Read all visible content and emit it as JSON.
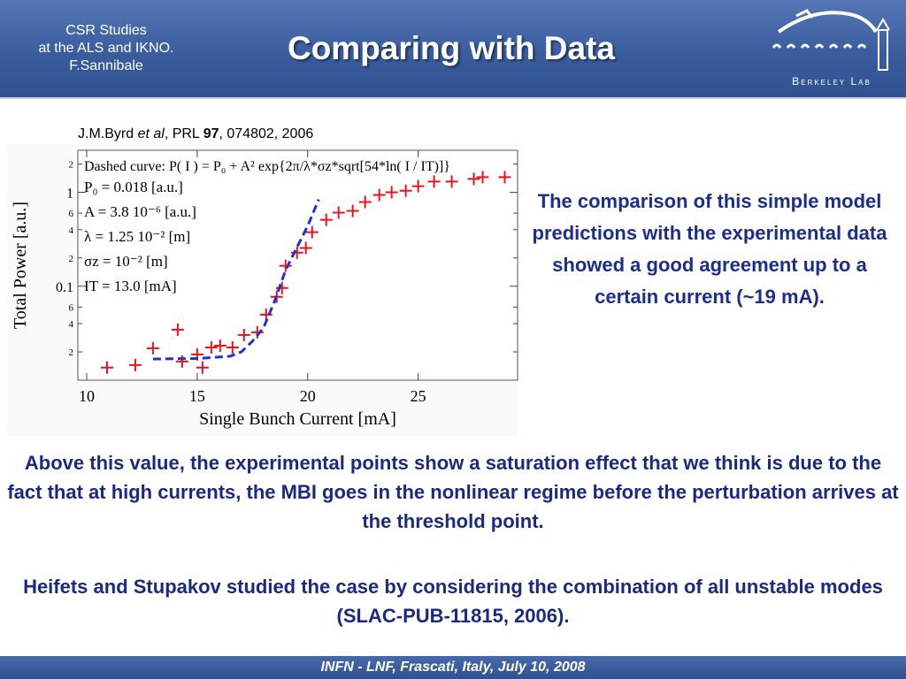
{
  "header": {
    "course": [
      "CSR Studies",
      "at the ALS and IKNO.",
      "F.Sannibale"
    ],
    "title": "Comparing with Data",
    "logo": "Berkeley Lab"
  },
  "citation": [
    "J.M.Byrd ",
    "et al",
    ", PRL ",
    "97",
    ", 074802, 2006"
  ],
  "chart_data": {
    "type": "scatter",
    "xlabel": "Single Bunch Current [mA]",
    "ylabel": "Total Power [a.u.]",
    "annotations": [
      "Dashed curve: P( I ) = P₀ + A² exp{2π/λ*σz*sqrt[54*ln( I / IT)]}",
      "P₀ = 0.018 [a.u.]",
      "A = 3.8 10⁻⁶ [a.u.]",
      "λ = 1.25 10⁻² [m]",
      "σz = 10⁻² [m]",
      "IT = 13.0 [mA]"
    ],
    "xlim": [
      9.6,
      29.5
    ],
    "ylim": [
      0.01,
      2.8
    ],
    "yscale": "log",
    "xticks": [
      10,
      15,
      20,
      25
    ],
    "yticks": [
      {
        "value": 0.02,
        "label": "2"
      },
      {
        "value": 0.04,
        "label": "4"
      },
      {
        "value": 0.06,
        "label": "6"
      },
      0.1,
      {
        "value": 0.2,
        "label": "2"
      },
      {
        "value": 0.4,
        "label": "4"
      },
      {
        "value": 0.6,
        "label": "6"
      },
      1,
      {
        "value": 2,
        "label": "2"
      }
    ],
    "series": [
      {
        "color": "#e8141c",
        "marker": "plus",
        "x": [
          10.92,
          12.2,
          13.0,
          14.12,
          14.32,
          15.24,
          15.0,
          15.64,
          16.04,
          16.6,
          17.12,
          17.72,
          18.12,
          18.6,
          18.84,
          19.0,
          19.52,
          19.92,
          20.2,
          20.84,
          21.4,
          22.04,
          22.6,
          23.24,
          23.8,
          24.44,
          25.0,
          25.72,
          26.52,
          27.52,
          27.92,
          28.92
        ],
        "values": [
          0.0136,
          0.0145,
          0.0219,
          0.0345,
          0.0158,
          0.0136,
          0.0188,
          0.0223,
          0.0233,
          0.0223,
          0.0303,
          0.0323,
          0.0499,
          0.0771,
          0.0958,
          0.165,
          0.228,
          0.255,
          0.376,
          0.51,
          0.607,
          0.634,
          0.788,
          0.937,
          1.0,
          1.04,
          1.16,
          1.3,
          1.3,
          1.39,
          1.45,
          1.45
        ]
      },
      {
        "color": "#1f2fd0",
        "marker": "dashed-line",
        "x": [
          13.0,
          15.0,
          16.5,
          17.0,
          17.5,
          18.0,
          18.5,
          19.0,
          19.5,
          20.0,
          20.5
        ],
        "values": [
          0.0168,
          0.017,
          0.018,
          0.02,
          0.026,
          0.036,
          0.069,
          0.148,
          0.255,
          0.438,
          0.84
        ]
      }
    ]
  },
  "comment": "The comparison of this simple model predictions with the experimental data showed a good agreement up to a certain current (~19 mA).",
  "body": [
    "Above this value, the experimental points show a saturation effect that we think is due to the fact that at high currents, the MBI goes in the nonlinear regime before the perturbation arrives at the threshold point.",
    "Heifets and Stupakov studied the case by considering the combination of all unstable modes (SLAC-PUB-11815, 2006)."
  ],
  "footer": "INFN - LNF, Frascati, Italy, July 10, 2008"
}
